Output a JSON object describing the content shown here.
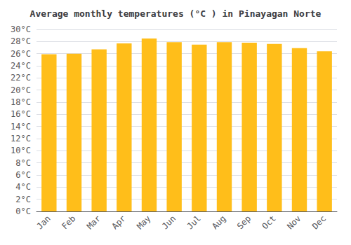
{
  "chart_data": {
    "type": "bar",
    "title": "Average monthly temperatures (°C ) in Pinayagan Norte",
    "categories": [
      "Jan",
      "Feb",
      "Mar",
      "Apr",
      "May",
      "Jun",
      "Jul",
      "Aug",
      "Sep",
      "Oct",
      "Nov",
      "Dec"
    ],
    "values": [
      25.9,
      26.0,
      26.7,
      27.7,
      28.5,
      27.9,
      27.5,
      27.9,
      27.8,
      27.6,
      26.9,
      26.4
    ],
    "color": "#FFBE1A",
    "ylim": [
      0,
      30
    ],
    "yticks": [
      {
        "value": 0,
        "label": "0°C"
      },
      {
        "value": 2,
        "label": "2°C"
      },
      {
        "value": 4,
        "label": "4°C"
      },
      {
        "value": 6,
        "label": "6°C"
      },
      {
        "value": 8,
        "label": "8°C"
      },
      {
        "value": 10,
        "label": "10°C"
      },
      {
        "value": 12,
        "label": "12°C"
      },
      {
        "value": 14,
        "label": "14°C"
      },
      {
        "value": 16,
        "label": "16°C"
      },
      {
        "value": 18,
        "label": "18°C"
      },
      {
        "value": 20,
        "label": "20°C"
      },
      {
        "value": 22,
        "label": "22°C"
      },
      {
        "value": 24,
        "label": "24°C"
      },
      {
        "value": 26,
        "label": "26°C"
      },
      {
        "value": 28,
        "label": "28°C"
      },
      {
        "value": 30,
        "label": "30°C"
      }
    ],
    "grid": true
  }
}
